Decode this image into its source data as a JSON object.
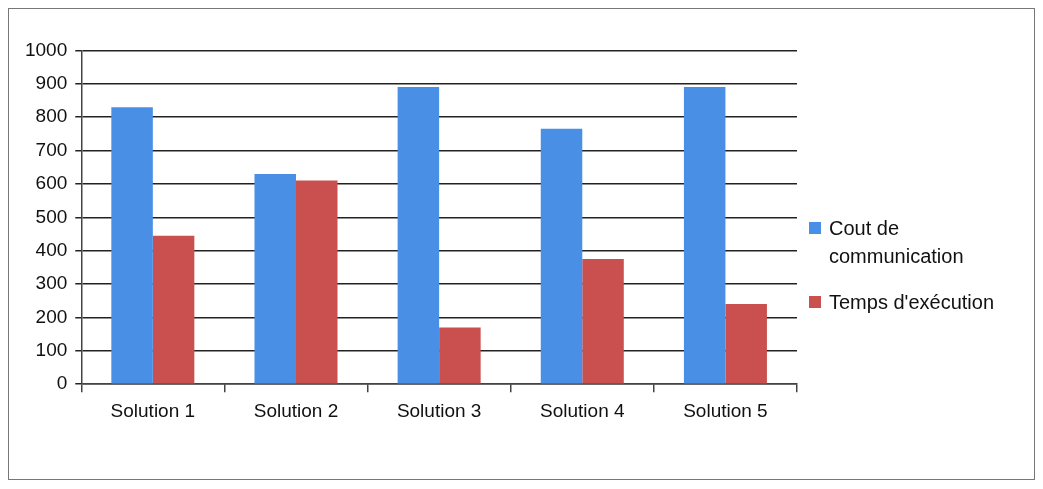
{
  "chart_data": {
    "type": "bar",
    "categories": [
      "Solution 1",
      "Solution 2",
      "Solution 3",
      "Solution 4",
      "Solution 5"
    ],
    "series": [
      {
        "name": "Cout de communication",
        "color": "#4a8fe6",
        "values": [
          830,
          630,
          890,
          765,
          890
        ]
      },
      {
        "name": "Temps d'exécution",
        "color": "#c9504f",
        "values": [
          445,
          610,
          170,
          375,
          240
        ]
      }
    ],
    "ylim": [
      0,
      1000
    ],
    "yticks": [
      0,
      100,
      200,
      300,
      400,
      500,
      600,
      700,
      800,
      900,
      1000
    ],
    "grid": "y",
    "legend": "right"
  }
}
